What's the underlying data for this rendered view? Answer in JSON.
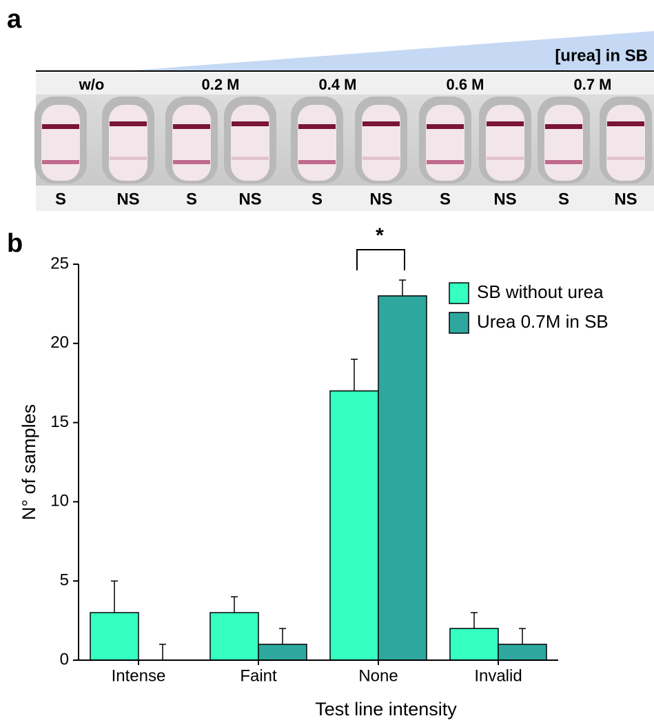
{
  "panel_a": {
    "label": "a",
    "gradient_label": "[urea] in SB",
    "concentrations": [
      "w/o",
      "0.2 M",
      "0.4 M",
      "0.6 M",
      "0.7 M"
    ],
    "strips": [
      "S",
      "NS",
      "S",
      "NS",
      "S",
      "NS",
      "S",
      "NS",
      "S",
      "NS"
    ]
  },
  "chart_data": {
    "type": "bar",
    "panel_label": "b",
    "xlabel": "Test line intensity",
    "ylabel": "N° of samples",
    "categories": [
      "Intense",
      "Faint",
      "None",
      "Invalid"
    ],
    "series": [
      {
        "name": "SB without urea",
        "color": "#36ffc2",
        "values": [
          3,
          3,
          17,
          2
        ],
        "errors": [
          2,
          1,
          2,
          1
        ]
      },
      {
        "name": "Urea 0.7M in SB",
        "color": "#2ea89f",
        "values": [
          0,
          1,
          23,
          1
        ],
        "errors": [
          1,
          1,
          1,
          1
        ]
      }
    ],
    "ylim": [
      0,
      25
    ],
    "yticks": [
      0,
      5,
      10,
      15,
      20,
      25
    ],
    "annotation": "*",
    "legend": "upper right"
  }
}
